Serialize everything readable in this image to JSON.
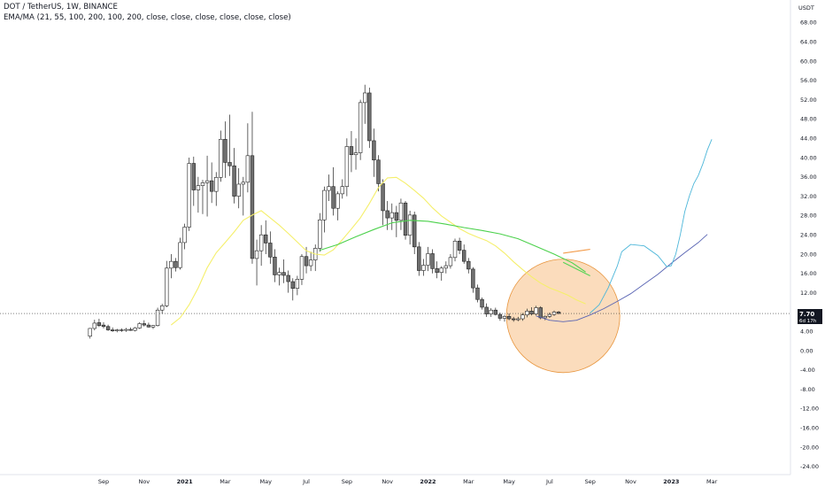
{
  "header": {
    "title": "DOT / TetherUS, 1W, BINANCE",
    "indicator": "EMA/MA (21, 55, 100, 200, 100, 200, close, close, close, close, close, close)"
  },
  "price_badge": {
    "price": "7.70",
    "countdown": "6d 17h"
  },
  "colors": {
    "up_candle": "#ffffff",
    "down_candle": "#6f6f6f",
    "candle_outline": "#222222",
    "ema21": "#f5ef6b",
    "ema55": "#4cd14c",
    "projection_blue": "#4cb6d9",
    "curve_navy": "#5964b3",
    "highlight_circle": "#f6b26b",
    "price_line": "#333333",
    "projection_green": "#55d455",
    "projection_orange": "#f39c4b"
  },
  "chart_data": {
    "type": "candlestick",
    "symbol": "DOT / TetherUS",
    "timeframe": "1W",
    "exchange": "BINANCE",
    "y_unit": "USDT",
    "ylim": [
      -25,
      70
    ],
    "y_ticks": [
      68,
      64,
      60,
      56,
      52,
      48,
      44,
      40,
      36,
      32,
      28,
      24,
      20,
      16,
      12,
      8,
      4,
      0,
      -4,
      -8,
      -12,
      -16,
      -20,
      -24
    ],
    "x_tick_labels": [
      {
        "label": "Sep",
        "bar": 0,
        "bold": false
      },
      {
        "label": "Nov",
        "bar": 9,
        "bold": false
      },
      {
        "label": "2021",
        "bar": 18,
        "bold": true
      },
      {
        "label": "Mar",
        "bar": 27,
        "bold": false
      },
      {
        "label": "May",
        "bar": 36,
        "bold": false
      },
      {
        "label": "Jul",
        "bar": 45,
        "bold": false
      },
      {
        "label": "Sep",
        "bar": 54,
        "bold": false
      },
      {
        "label": "Nov",
        "bar": 63,
        "bold": false
      },
      {
        "label": "2022",
        "bar": 72,
        "bold": true
      },
      {
        "label": "Mar",
        "bar": 81,
        "bold": false
      },
      {
        "label": "May",
        "bar": 90,
        "bold": false
      },
      {
        "label": "Jul",
        "bar": 99,
        "bold": false
      },
      {
        "label": "Sep",
        "bar": 108,
        "bold": false
      },
      {
        "label": "Nov",
        "bar": 117,
        "bold": false
      },
      {
        "label": "2023",
        "bar": 126,
        "bold": true
      },
      {
        "label": "Mar",
        "bar": 135,
        "bold": false
      }
    ],
    "first_bar_offset": -3,
    "candles": [
      [
        3.0,
        4.7,
        2.5,
        4.6
      ],
      [
        4.6,
        6.4,
        4.2,
        5.7
      ],
      [
        5.8,
        6.6,
        4.9,
        5.2
      ],
      [
        5.3,
        5.9,
        4.6,
        5.0
      ],
      [
        5.0,
        5.4,
        4.1,
        4.3
      ],
      [
        4.3,
        4.8,
        3.9,
        4.1
      ],
      [
        4.1,
        4.5,
        3.8,
        4.3
      ],
      [
        4.3,
        4.6,
        3.9,
        4.2
      ],
      [
        4.2,
        4.7,
        3.9,
        4.4
      ],
      [
        4.4,
        4.8,
        4.1,
        4.2
      ],
      [
        4.2,
        4.9,
        4.0,
        4.7
      ],
      [
        4.7,
        5.9,
        4.5,
        5.6
      ],
      [
        5.6,
        6.3,
        5.0,
        5.3
      ],
      [
        5.3,
        5.8,
        4.8,
        4.9
      ],
      [
        4.9,
        5.3,
        4.5,
        5.2
      ],
      [
        5.2,
        8.9,
        5.0,
        8.4
      ],
      [
        8.4,
        9.7,
        7.6,
        9.3
      ],
      [
        9.3,
        18.6,
        9.0,
        17.1
      ],
      [
        17.1,
        20.0,
        15.0,
        18.5
      ],
      [
        18.5,
        19.2,
        16.4,
        17.2
      ],
      [
        17.2,
        23.4,
        16.8,
        22.4
      ],
      [
        22.4,
        26.3,
        21.0,
        25.6
      ],
      [
        25.6,
        40.0,
        24.8,
        38.8
      ],
      [
        38.8,
        40.2,
        30.0,
        33.3
      ],
      [
        33.3,
        36.0,
        28.6,
        34.2
      ],
      [
        34.2,
        35.4,
        28.3,
        34.8
      ],
      [
        34.8,
        40.4,
        27.8,
        35.2
      ],
      [
        35.2,
        39.0,
        30.6,
        33.0
      ],
      [
        33.0,
        37.0,
        30.0,
        35.9
      ],
      [
        35.9,
        45.6,
        35.0,
        43.8
      ],
      [
        43.8,
        47.5,
        35.8,
        39.0
      ],
      [
        39.0,
        48.9,
        36.2,
        38.3
      ],
      [
        38.3,
        42.0,
        30.5,
        32.0
      ],
      [
        32.0,
        37.8,
        29.5,
        34.5
      ],
      [
        34.5,
        36.0,
        28.0,
        34.9
      ],
      [
        34.9,
        47.1,
        32.8,
        40.4
      ],
      [
        40.4,
        49.5,
        18.0,
        19.1
      ],
      [
        19.1,
        23.0,
        13.5,
        20.7
      ],
      [
        20.7,
        26.0,
        17.6,
        24.0
      ],
      [
        24.0,
        27.0,
        20.0,
        22.3
      ],
      [
        22.3,
        24.7,
        18.0,
        19.4
      ],
      [
        19.4,
        21.0,
        14.2,
        15.7
      ],
      [
        15.7,
        17.2,
        13.5,
        16.2
      ],
      [
        16.2,
        18.9,
        14.0,
        15.6
      ],
      [
        15.6,
        16.6,
        12.0,
        14.3
      ],
      [
        14.3,
        15.0,
        10.4,
        12.9
      ],
      [
        12.9,
        15.5,
        11.5,
        14.8
      ],
      [
        14.8,
        20.0,
        13.6,
        19.5
      ],
      [
        19.5,
        21.5,
        16.0,
        17.6
      ],
      [
        17.6,
        20.5,
        16.5,
        18.8
      ],
      [
        18.8,
        22.0,
        16.5,
        21.2
      ],
      [
        21.2,
        28.5,
        20.5,
        27.1
      ],
      [
        27.1,
        34.0,
        24.5,
        33.2
      ],
      [
        33.2,
        36.5,
        31.0,
        34.0
      ],
      [
        34.0,
        38.0,
        28.0,
        29.5
      ],
      [
        29.5,
        33.0,
        27.0,
        32.5
      ],
      [
        32.5,
        35.5,
        31.5,
        34.0
      ],
      [
        34.0,
        44.0,
        32.0,
        42.3
      ],
      [
        42.3,
        45.5,
        37.0,
        40.6
      ],
      [
        40.6,
        44.0,
        37.5,
        41.0
      ],
      [
        41.0,
        52.0,
        39.5,
        51.4
      ],
      [
        51.4,
        55.1,
        47.0,
        53.4
      ],
      [
        53.4,
        54.5,
        42.0,
        43.5
      ],
      [
        43.5,
        46.0,
        36.0,
        39.5
      ],
      [
        39.5,
        40.5,
        33.0,
        34.6
      ],
      [
        34.6,
        35.5,
        26.0,
        29.0
      ],
      [
        29.0,
        31.0,
        25.0,
        27.5
      ],
      [
        27.5,
        30.5,
        25.0,
        28.6
      ],
      [
        28.6,
        30.0,
        23.5,
        27.0
      ],
      [
        27.0,
        31.5,
        25.0,
        30.6
      ],
      [
        30.6,
        31.0,
        23.0,
        23.9
      ],
      [
        23.9,
        29.0,
        22.0,
        28.1
      ],
      [
        28.1,
        28.8,
        20.0,
        21.5
      ],
      [
        21.5,
        22.5,
        15.5,
        16.6
      ],
      [
        16.6,
        19.0,
        15.5,
        17.7
      ],
      [
        17.7,
        21.5,
        16.5,
        20.1
      ],
      [
        20.1,
        21.0,
        16.0,
        17.0
      ],
      [
        17.0,
        18.5,
        15.0,
        16.2
      ],
      [
        16.2,
        17.5,
        14.5,
        17.1
      ],
      [
        17.1,
        18.5,
        16.0,
        17.6
      ],
      [
        17.6,
        20.0,
        17.0,
        19.3
      ],
      [
        19.3,
        23.2,
        18.5,
        22.7
      ],
      [
        22.7,
        23.4,
        20.0,
        20.8
      ],
      [
        20.8,
        22.0,
        18.0,
        18.5
      ],
      [
        18.5,
        19.2,
        16.0,
        16.9
      ],
      [
        16.9,
        17.3,
        12.0,
        13.0
      ],
      [
        13.0,
        13.7,
        10.0,
        10.6
      ],
      [
        10.6,
        11.0,
        8.5,
        9.0
      ],
      [
        9.0,
        9.8,
        7.0,
        7.6
      ],
      [
        7.6,
        8.8,
        7.0,
        8.4
      ],
      [
        8.4,
        8.9,
        7.3,
        7.5
      ],
      [
        7.5,
        7.9,
        6.2,
        6.7
      ],
      [
        6.7,
        7.4,
        6.0,
        7.1
      ],
      [
        7.1,
        7.7,
        6.3,
        6.6
      ],
      [
        6.6,
        7.0,
        6.0,
        6.4
      ],
      [
        6.4,
        7.0,
        6.1,
        6.6
      ],
      [
        6.6,
        7.8,
        6.2,
        7.4
      ],
      [
        7.4,
        8.7,
        6.9,
        8.2
      ],
      [
        8.2,
        9.0,
        7.3,
        7.6
      ],
      [
        7.6,
        9.3,
        7.3,
        8.9
      ],
      [
        8.9,
        9.2,
        6.5,
        6.8
      ],
      [
        6.8,
        7.3,
        6.3,
        7.1
      ],
      [
        7.1,
        7.9,
        6.8,
        7.5
      ],
      [
        7.5,
        8.3,
        7.2,
        8.0
      ],
      [
        8.0,
        8.2,
        7.6,
        7.7
      ]
    ],
    "ema21": [
      [
        15,
        5.3
      ],
      [
        17,
        6.8
      ],
      [
        19,
        9.5
      ],
      [
        21,
        13.0
      ],
      [
        23,
        17.2
      ],
      [
        25,
        20.3
      ],
      [
        27,
        22.4
      ],
      [
        29,
        24.6
      ],
      [
        31,
        27.0
      ],
      [
        33,
        28.1
      ],
      [
        35,
        29.0
      ],
      [
        37,
        27.5
      ],
      [
        39,
        26.0
      ],
      [
        41,
        24.3
      ],
      [
        43,
        22.5
      ],
      [
        45,
        20.7
      ],
      [
        47,
        20.0
      ],
      [
        49,
        19.8
      ],
      [
        51,
        20.9
      ],
      [
        53,
        23.0
      ],
      [
        55,
        25.2
      ],
      [
        57,
        27.5
      ],
      [
        59,
        30.5
      ],
      [
        61,
        33.8
      ],
      [
        63,
        35.8
      ],
      [
        65,
        35.9
      ],
      [
        67,
        34.7
      ],
      [
        69,
        33.2
      ],
      [
        71,
        31.6
      ],
      [
        73,
        29.6
      ],
      [
        75,
        27.9
      ],
      [
        77,
        26.6
      ],
      [
        79,
        25.3
      ],
      [
        81,
        24.3
      ],
      [
        83,
        23.5
      ],
      [
        85,
        22.8
      ],
      [
        87,
        21.7
      ],
      [
        89,
        20.2
      ],
      [
        91,
        18.4
      ],
      [
        93,
        16.8
      ],
      [
        95,
        15.3
      ],
      [
        97,
        14.0
      ],
      [
        99,
        13.0
      ],
      [
        101,
        12.3
      ],
      [
        103,
        11.5
      ],
      [
        105,
        10.5
      ],
      [
        107,
        9.7
      ]
    ],
    "ema55": [
      [
        48,
        20.8
      ],
      [
        52,
        22.0
      ],
      [
        56,
        23.6
      ],
      [
        60,
        25.1
      ],
      [
        64,
        26.5
      ],
      [
        68,
        27.0
      ],
      [
        72,
        26.8
      ],
      [
        76,
        26.2
      ],
      [
        80,
        25.5
      ],
      [
        84,
        24.9
      ],
      [
        88,
        24.2
      ],
      [
        92,
        23.2
      ],
      [
        96,
        21.6
      ],
      [
        100,
        20.0
      ],
      [
        104,
        18.2
      ],
      [
        107,
        16.3
      ]
    ],
    "projections": {
      "green_segment": [
        [
          102,
          18.3
        ],
        [
          108,
          15.5
        ]
      ],
      "orange_segment": [
        [
          102,
          20.2
        ],
        [
          108,
          21.0
        ]
      ],
      "blue_path": [
        [
          108,
          7.8
        ],
        [
          110,
          9.5
        ],
        [
          112,
          13.0
        ],
        [
          114,
          17.5
        ],
        [
          115,
          20.5
        ],
        [
          117,
          22.0
        ],
        [
          120,
          21.7
        ],
        [
          123,
          19.7
        ],
        [
          125,
          17.4
        ],
        [
          126,
          17.6
        ],
        [
          127,
          20.0
        ],
        [
          128,
          24.0
        ],
        [
          129,
          28.8
        ],
        [
          130,
          32.0
        ],
        [
          131,
          34.6
        ],
        [
          132,
          36.3
        ],
        [
          133,
          38.7
        ],
        [
          134,
          41.6
        ],
        [
          135,
          43.8
        ]
      ],
      "navy_curve": [
        [
          96,
          7.2
        ],
        [
          99,
          6.3
        ],
        [
          102,
          6.0
        ],
        [
          105,
          6.3
        ],
        [
          108,
          7.4
        ],
        [
          111,
          8.7
        ],
        [
          114,
          10.2
        ],
        [
          117,
          11.8
        ],
        [
          120,
          13.8
        ],
        [
          123,
          15.8
        ],
        [
          126,
          18.1
        ],
        [
          129,
          20.3
        ],
        [
          132,
          22.4
        ],
        [
          134,
          24.1
        ]
      ],
      "circle": {
        "center_bar": 102,
        "center_price": 7.2,
        "radius_bars": 8.5
      }
    },
    "current_price": 7.7
  }
}
